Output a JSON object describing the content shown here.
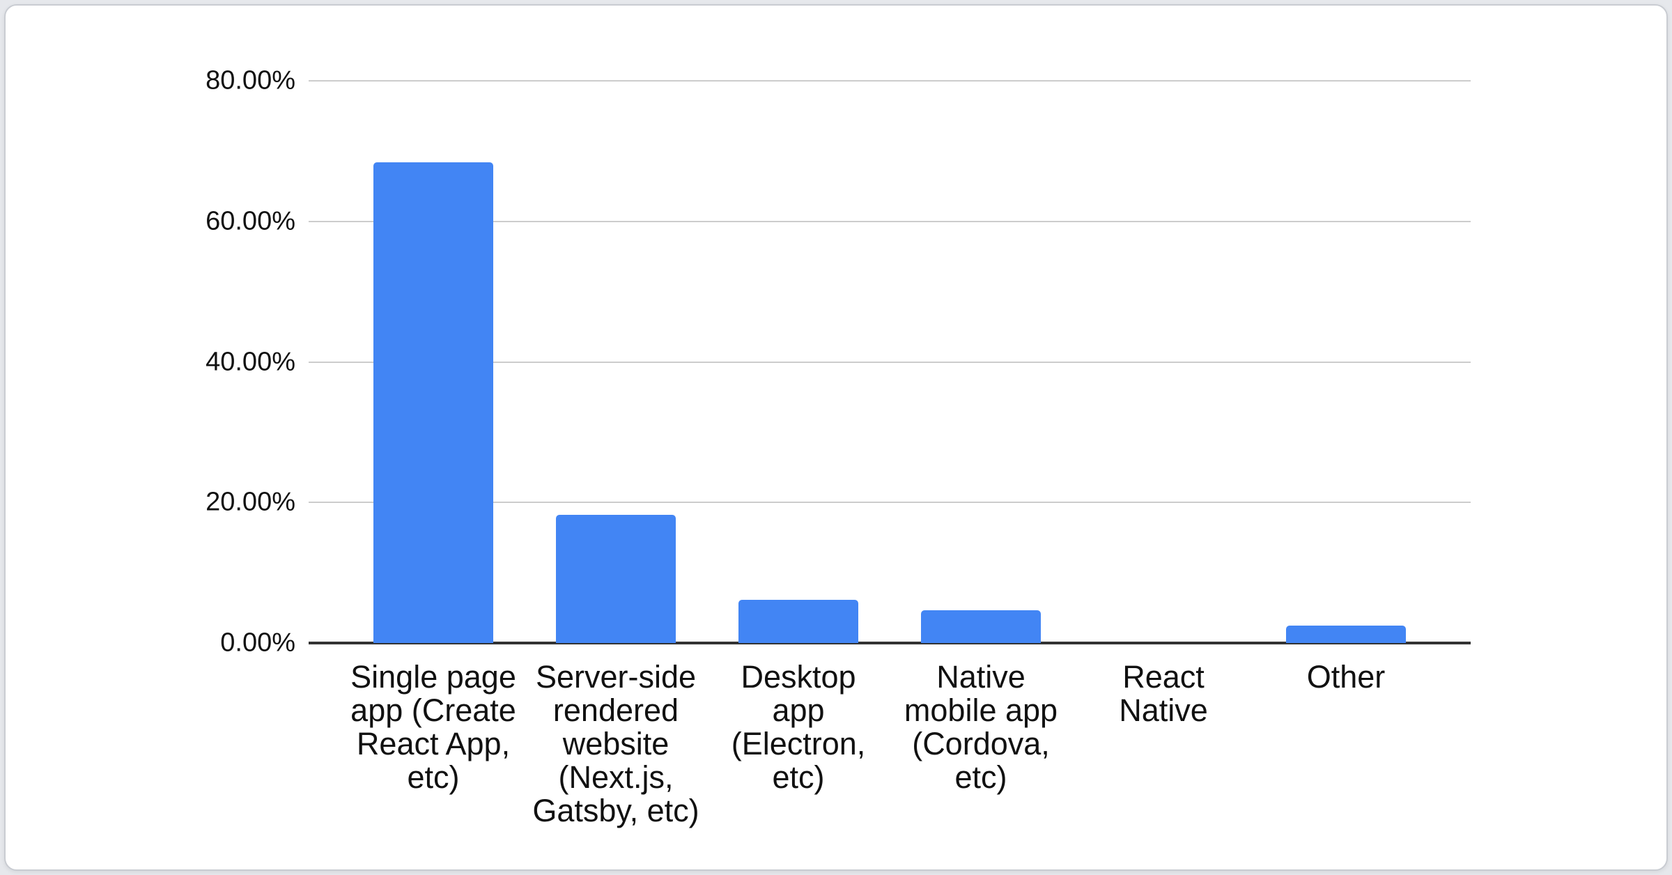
{
  "colors": {
    "bar": "#4285f4",
    "gridline": "#cccccc",
    "axis_line": "#333333",
    "label_text": "#111111",
    "card_background": "#ffffff",
    "card_border": "#c9ccd2",
    "page_background": "#e6e8ec"
  },
  "chart_data": {
    "type": "bar",
    "title": "",
    "xlabel": "",
    "ylabel": "",
    "legend": "none",
    "grid": true,
    "ylim": [
      0,
      80
    ],
    "y_ticks": [
      {
        "value": 80,
        "label": "80.00%"
      },
      {
        "value": 60,
        "label": "60.00%"
      },
      {
        "value": 40,
        "label": "40.00%"
      },
      {
        "value": 20,
        "label": "20.00%"
      },
      {
        "value": 0,
        "label": "0.00%"
      }
    ],
    "categories": [
      "Single page app (Create React App, etc)",
      "Server-side rendered website (Next.js, Gatsby, etc)",
      "Desktop app (Electron, etc)",
      "Native mobile app (Cordova, etc)",
      "React Native",
      "Other"
    ],
    "category_label_lines": [
      "Single page\napp (Create\nReact App,\netc)",
      "Server-side\nrendered\nwebsite\n(Next.js,\nGatsby, etc)",
      "Desktop\napp\n(Electron,\netc)",
      "Native\nmobile app\n(Cordova,\netc)",
      "React\nNative",
      "Other"
    ],
    "category_slugs": [
      "single-page-app",
      "server-side-rendered-website",
      "desktop-app",
      "native-mobile-app",
      "react-native",
      "other"
    ],
    "values": [
      68.4,
      18.2,
      6.1,
      4.7,
      0,
      2.5
    ],
    "value_unit": "percent"
  }
}
